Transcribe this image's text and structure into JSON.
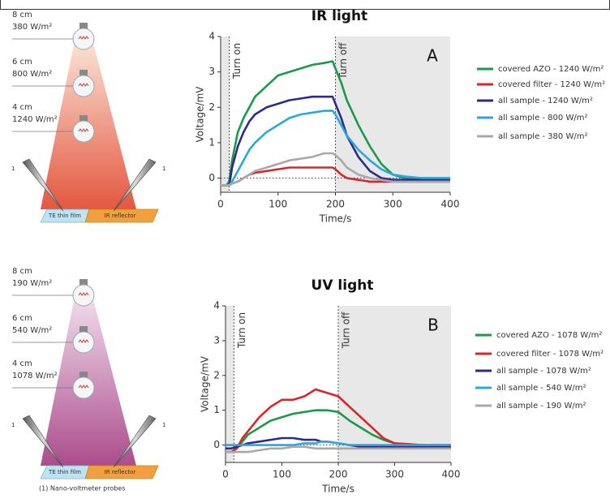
{
  "chart_data": [
    {
      "type": "line",
      "title": "IR light",
      "panel": "A",
      "x_label": "Time/s",
      "y_label": "Voltage/mV",
      "xlim": [
        0,
        400
      ],
      "xticks": [
        0,
        100,
        200,
        300,
        400
      ],
      "ylim": [
        -0.4,
        4
      ],
      "yticks": [
        0,
        1,
        2,
        3,
        4
      ],
      "annotations": [
        {
          "text": "Turn on",
          "x": 15
        },
        {
          "text": "Turn off",
          "x": 200
        }
      ],
      "x": [
        0,
        10,
        15,
        20,
        30,
        40,
        50,
        60,
        80,
        100,
        120,
        140,
        160,
        180,
        195,
        200,
        210,
        220,
        240,
        260,
        280,
        300,
        320,
        350,
        400
      ],
      "series": [
        {
          "name": "covered AZO - 1240 W/m²",
          "color": "#1a9a4a",
          "values": [
            -0.2,
            -0.2,
            -0.1,
            0.5,
            1.3,
            1.7,
            2.0,
            2.3,
            2.6,
            2.9,
            3.0,
            3.1,
            3.2,
            3.25,
            3.3,
            3.1,
            2.7,
            2.2,
            1.5,
            0.9,
            0.4,
            0.1,
            0.0,
            0.0,
            0.0
          ]
        },
        {
          "name": "covered filter - 1240 W/m²",
          "color": "#d9262b",
          "values": [
            -0.2,
            -0.2,
            -0.2,
            -0.15,
            -0.1,
            0.0,
            0.1,
            0.15,
            0.2,
            0.25,
            0.3,
            0.3,
            0.3,
            0.3,
            0.3,
            0.25,
            0.1,
            0.0,
            -0.05,
            -0.1,
            -0.1,
            -0.1,
            -0.1,
            -0.1,
            -0.1
          ]
        },
        {
          "name": "all sample - 1240 W/m²",
          "color": "#2e2a8c",
          "values": [
            -0.2,
            -0.2,
            -0.2,
            0.3,
            0.9,
            1.3,
            1.6,
            1.8,
            2.0,
            2.1,
            2.2,
            2.25,
            2.3,
            2.3,
            2.3,
            2.1,
            1.7,
            1.2,
            0.6,
            0.2,
            0.0,
            -0.05,
            -0.05,
            -0.05,
            -0.05
          ]
        },
        {
          "name": "all sample - 800 W/m²",
          "color": "#27a8df",
          "values": [
            -0.2,
            -0.2,
            -0.2,
            -0.1,
            0.2,
            0.5,
            0.8,
            1.0,
            1.3,
            1.5,
            1.7,
            1.8,
            1.85,
            1.9,
            1.9,
            1.8,
            1.5,
            1.2,
            0.8,
            0.5,
            0.25,
            0.1,
            0.05,
            0.0,
            0.0
          ]
        },
        {
          "name": "all sample - 380 W/m²",
          "color": "#a8a8a8",
          "values": [
            -0.2,
            -0.2,
            -0.2,
            -0.15,
            -0.1,
            0.0,
            0.1,
            0.2,
            0.3,
            0.4,
            0.5,
            0.55,
            0.6,
            0.7,
            0.7,
            0.65,
            0.5,
            0.3,
            0.1,
            0.0,
            -0.05,
            -0.1,
            -0.1,
            -0.1,
            -0.1
          ]
        }
      ]
    },
    {
      "type": "line",
      "title": "UV light",
      "panel": "B",
      "x_label": "Time/s",
      "y_label": "Voltage/mV",
      "xlim": [
        0,
        400
      ],
      "xticks": [
        0,
        100,
        200,
        300,
        400
      ],
      "ylim": [
        -0.5,
        4
      ],
      "yticks": [
        0,
        1,
        2,
        3,
        4
      ],
      "annotations": [
        {
          "text": "Turn on",
          "x": 15
        },
        {
          "text": "Turn off",
          "x": 200
        }
      ],
      "x": [
        0,
        10,
        20,
        30,
        40,
        60,
        80,
        100,
        120,
        140,
        160,
        170,
        180,
        200,
        220,
        240,
        260,
        280,
        300,
        350,
        400
      ],
      "series": [
        {
          "name": "covered AZO - 1078 W/m²",
          "color": "#1a9a4a",
          "values": [
            -0.2,
            -0.2,
            -0.1,
            0.1,
            0.3,
            0.5,
            0.7,
            0.8,
            0.9,
            0.95,
            1.0,
            1.0,
            1.0,
            0.95,
            0.7,
            0.5,
            0.3,
            0.15,
            0.05,
            0.0,
            -0.05
          ]
        },
        {
          "name": "covered filter - 1078 W/m²",
          "color": "#d9262b",
          "values": [
            -0.2,
            -0.2,
            -0.1,
            0.2,
            0.4,
            0.8,
            1.1,
            1.3,
            1.3,
            1.4,
            1.6,
            1.55,
            1.5,
            1.4,
            1.1,
            0.8,
            0.5,
            0.2,
            0.05,
            0.0,
            0.0
          ]
        },
        {
          "name": "all sample - 1078 W/m²",
          "color": "#2e2a8c",
          "values": [
            -0.1,
            -0.1,
            -0.05,
            0.0,
            0.05,
            0.1,
            0.15,
            0.2,
            0.2,
            0.15,
            0.15,
            0.1,
            0.1,
            0.05,
            0.0,
            -0.05,
            -0.05,
            -0.05,
            -0.05,
            -0.05,
            -0.05
          ]
        },
        {
          "name": "all sample - 540 W/m²",
          "color": "#27a8df",
          "values": [
            0,
            0,
            0,
            0,
            0,
            0,
            0,
            0,
            0,
            0.05,
            0.05,
            0.1,
            0.1,
            0.05,
            0,
            0,
            0,
            0,
            0,
            0,
            0
          ]
        },
        {
          "name": "all sample - 190 W/m²",
          "color": "#a8a8a8",
          "values": [
            -0.2,
            -0.2,
            -0.2,
            -0.2,
            -0.2,
            -0.15,
            -0.1,
            -0.1,
            -0.05,
            -0.05,
            -0.1,
            -0.1,
            -0.1,
            -0.1,
            -0.1,
            -0.1,
            -0.1,
            -0.1,
            -0.1,
            -0.1,
            -0.1
          ]
        }
      ]
    }
  ],
  "setups": [
    {
      "lamps": [
        {
          "distance": "8 cm",
          "irradiance": "380 W/m²"
        },
        {
          "distance": "6 cm",
          "irradiance": "800 W/m²"
        },
        {
          "distance": "4 cm",
          "irradiance": "1240 W/m²"
        }
      ],
      "film": "TE thin film",
      "reflector": "IR reflector",
      "probe_marks": [
        "1",
        "1"
      ]
    },
    {
      "lamps": [
        {
          "distance": "8 cm",
          "irradiance": "190 W/m²"
        },
        {
          "distance": "6 cm",
          "irradiance": "540 W/m²"
        },
        {
          "distance": "4 cm",
          "irradiance": "1078 W/m²"
        }
      ],
      "film": "TE thin film",
      "reflector": "IR reflector",
      "probe_marks": [
        "1",
        "1"
      ]
    }
  ],
  "footnote": "(1) Nano-voltmeter probes"
}
